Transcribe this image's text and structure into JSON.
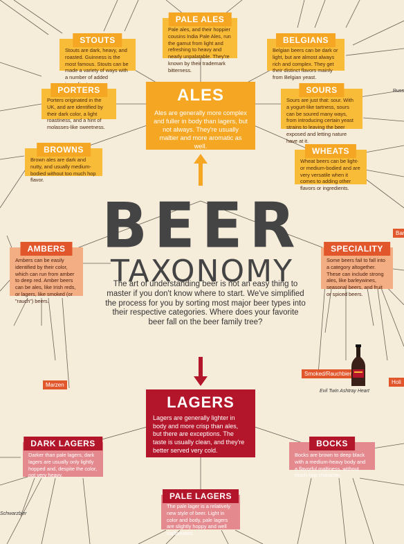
{
  "title": {
    "word1": "BEER",
    "word2": "TAXONOMY"
  },
  "intro": "The art of understanding beer is not an easy thing to master if you don't know where to start. We've simplified the process for you by sorting most major beer types into their respective categories. Where does your favorite beer fall on the beer family tree?",
  "colors": {
    "ales": "#f9bc39",
    "ales_header": "#f5a623",
    "ambers": "#e2562b",
    "lagers": "#b3162a",
    "lagers_light": "#e48a8f",
    "background": "#f6ecda"
  },
  "ales": {
    "title": "ALES",
    "text": "Ales are generally more complex and fuller in body than lagers, but not always. They're usually maltier and more aromatic as well."
  },
  "lagers": {
    "title": "LAGERS",
    "text": "Lagers are generally lighter in body and more crisp than ales, but there are exceptions. The taste is usually clean, and they're better served very cold."
  },
  "styles": {
    "pale_ales": {
      "title": "PALE ALES",
      "text": "Pale ales, and their hoppier cousins India Pale Ales, run the gamut from light and refreshing to heavy and nearly unpalatable. They're known by their trademark bitterness."
    },
    "stouts": {
      "title": "STOUTS",
      "text": "Stouts are dark, heavy, and roasted. Guinness is the most famous. Stouts can be made a variety of ways with a number of added ingredients."
    },
    "belgians": {
      "title": "BELGIANS",
      "text": "Belgian beers can be dark or light, but are almost always rich and complex. They get their distinct flavors mainly from Belgian yeast."
    },
    "porters": {
      "title": "PORTERS",
      "text": "Porters originated in the UK, and are identified by their dark color, a light roastiness, and a hint of molasses-like sweetness."
    },
    "sours": {
      "title": "SOURS",
      "text": "Sours are just that: sour. With a yogurt-like tartness, sours can be soured many ways, from introducing certain yeast strains to leaving the beer exposed and letting nature have at it."
    },
    "browns": {
      "title": "BROWNS",
      "text": "Brown ales are dark and nutty, and usually medium-bodied without too much hop flavor."
    },
    "wheats": {
      "title": "WHEATS",
      "text": "Wheat beers can be light- or medium-bodied and are very versatile when it comes to adding other flavors or ingredients."
    },
    "ambers": {
      "title": "AMBERS",
      "text": "Ambers can be easily identified by their color, which can run from amber to deep red. Amber beers can be ales, like Irish reds, or lagers, like smoked (or \"rauch\") beers."
    },
    "speciality": {
      "title": "SPECIALITY",
      "text": "Some beers fail to fall into a category altogether. These can include strong ales, like barleywines, seasonal beers, and fruit or spiced beers."
    },
    "dark_lagers": {
      "title": "DARK LAGERS",
      "text": "Darker than pale lagers, dark lagers are usually only lightly hopped and, despite the color, not very heavy."
    },
    "bocks": {
      "title": "BOCKS",
      "text": "Bocks are brown to deep black with a medium-heavy body and a flavorful maltiness, without much hop character."
    },
    "pale_lagers": {
      "title": "PALE LAGERS",
      "text": "The pale lager is a relatively new style of beer. Light in color and body, pale lagers are slightly hoppy and well carbonated."
    }
  },
  "tags": {
    "smoked": "Smoked/Rauchbier",
    "marzen": "Marzen",
    "schwarzbier": "Schwarzbier",
    "russ": "Russ",
    "barl": "Barl",
    "holi": "Holi"
  },
  "example_beer": "Evil Twin Ashtray Heart"
}
